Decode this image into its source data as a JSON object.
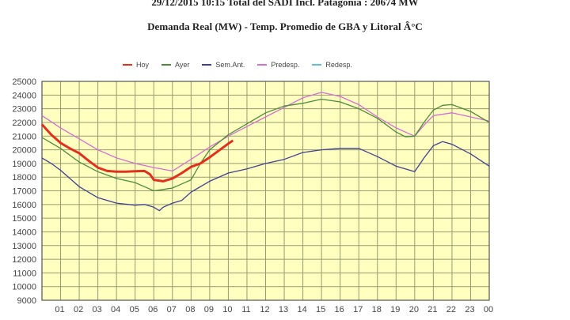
{
  "header": {
    "title": "29/12/2015 10:15 Total del SADI Incl. Patagonia : 20674 MW",
    "subtitle": "Demanda Real (MW) - Temp. Promedio de GBA y Litoral Â°C"
  },
  "chart_data": {
    "type": "line",
    "title": "29/12/2015 10:15 Total del SADI Incl. Patagonia : 20674 MW",
    "subtitle": "Demanda Real (MW) - Temp. Promedio de GBA y Litoral Â°C",
    "xlabel": "",
    "ylabel": "",
    "xlim": [
      0,
      24
    ],
    "ylim": [
      9000,
      25000
    ],
    "grid": true,
    "legend_position": "top",
    "x_tick_labels": [
      "01",
      "02",
      "03",
      "04",
      "05",
      "06",
      "07",
      "08",
      "09",
      "10",
      "11",
      "12",
      "13",
      "14",
      "15",
      "16",
      "17",
      "18",
      "19",
      "20",
      "21",
      "22",
      "23",
      "00"
    ],
    "y_ticks": [
      9000,
      10000,
      11000,
      12000,
      13000,
      14000,
      15000,
      16000,
      17000,
      18000,
      19000,
      20000,
      21000,
      22000,
      23000,
      24000,
      25000
    ],
    "series": [
      {
        "name": "Hoy",
        "color": "#e0301e",
        "x": [
          0,
          0.5,
          1,
          1.5,
          2,
          2.5,
          3,
          3.5,
          4,
          4.5,
          5,
          5.5,
          5.8,
          6,
          6.5,
          7,
          7.5,
          8,
          8.5,
          9,
          9.5,
          10,
          10.25
        ],
        "y": [
          21850,
          21100,
          20500,
          20100,
          19750,
          19200,
          18700,
          18450,
          18400,
          18400,
          18430,
          18450,
          18200,
          17800,
          17700,
          17900,
          18300,
          18750,
          19000,
          19450,
          19950,
          20450,
          20674
        ]
      },
      {
        "name": "Ayer",
        "color": "#4e8a3c",
        "x": [
          0,
          0.5,
          1,
          2,
          3,
          4,
          5,
          5.5,
          6,
          6.5,
          7,
          7.5,
          8,
          8.5,
          9,
          10,
          11,
          12,
          13,
          14,
          15,
          16,
          17,
          18,
          19,
          19.5,
          20,
          20.5,
          21,
          21.5,
          22,
          23,
          24
        ],
        "y": [
          20900,
          20500,
          20100,
          19100,
          18400,
          17900,
          17600,
          17300,
          17000,
          17100,
          17200,
          17500,
          17800,
          19000,
          20000,
          21100,
          21900,
          22700,
          23200,
          23400,
          23700,
          23500,
          23000,
          22300,
          21300,
          20950,
          21000,
          22000,
          22900,
          23250,
          23300,
          22800,
          22000
        ]
      },
      {
        "name": "Sem.Ant.",
        "color": "#404090",
        "x": [
          0,
          0.5,
          1,
          2,
          3,
          4,
          5,
          5.5,
          6,
          6.3,
          6.5,
          7,
          7.5,
          8,
          9,
          10,
          11,
          12,
          13,
          14,
          15,
          16,
          17,
          18,
          19,
          20,
          20.5,
          21,
          21.5,
          22,
          23,
          24
        ],
        "y": [
          19400,
          19000,
          18500,
          17300,
          16500,
          16100,
          15950,
          16000,
          15800,
          15550,
          15800,
          16100,
          16300,
          16900,
          17700,
          18300,
          18600,
          19000,
          19300,
          19800,
          20000,
          20100,
          20100,
          19500,
          18800,
          18400,
          19400,
          20300,
          20600,
          20400,
          19700,
          18800
        ]
      },
      {
        "name": "Predesp.",
        "color": "#d070d0",
        "x": [
          0,
          1,
          2,
          3,
          4,
          5,
          6,
          7,
          8,
          9,
          10,
          11,
          12,
          13,
          14,
          15,
          16,
          17,
          18,
          19,
          20,
          20.5,
          21,
          22,
          23,
          24
        ],
        "y": [
          22500,
          21600,
          20800,
          20000,
          19400,
          19000,
          18700,
          18450,
          19300,
          20200,
          21000,
          21700,
          22400,
          23100,
          23800,
          24200,
          23900,
          23300,
          22400,
          21600,
          21000,
          21800,
          22500,
          22700,
          22400,
          22100
        ]
      },
      {
        "name": "Redesp.",
        "color": "#60c0d0",
        "x": [],
        "y": []
      }
    ]
  }
}
